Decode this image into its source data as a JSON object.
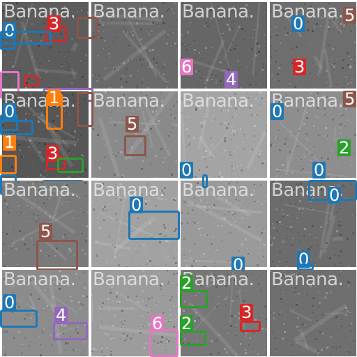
{
  "watermark": "Banana.",
  "class_colors": {
    "0": "#1f77b4",
    "1": "#ff7f0e",
    "2": "#2ca02c",
    "3": "#d62728",
    "4": "#9467bd",
    "5": "#8c564b",
    "6": "#e377c2"
  },
  "tiles": [
    {
      "watermark": "Banana.",
      "tone": "#5c5c5c",
      "labels": [
        "0",
        "3"
      ]
    },
    {
      "watermark": "Banana.",
      "tone": "#6a6a6a",
      "labels": []
    },
    {
      "watermark": "Banana.",
      "tone": "#666666",
      "labels": [
        "6",
        "4"
      ]
    },
    {
      "watermark": "Banana.",
      "tone": "#6e6e6e",
      "labels": [
        "0",
        "5",
        "3"
      ]
    },
    {
      "watermark": "Banana.",
      "tone": "#565656",
      "labels": [
        "0",
        "1",
        "1",
        "3"
      ]
    },
    {
      "watermark": "Banana.",
      "tone": "#8a8a8a",
      "labels": [
        "5"
      ]
    },
    {
      "watermark": "Banana.",
      "tone": "#a4a4a4",
      "labels": [
        "0"
      ]
    },
    {
      "watermark": "Banana.",
      "tone": "#8e8e8e",
      "labels": [
        "0",
        "5",
        "2",
        "0"
      ]
    },
    {
      "watermark": "Banana.",
      "tone": "#7a7a7a",
      "labels": [
        "5"
      ]
    },
    {
      "watermark": "Banana.",
      "tone": "#a2a2a2",
      "labels": [
        "0"
      ]
    },
    {
      "watermark": "Banana.",
      "tone": "#9a9a9a",
      "labels": [
        "0"
      ]
    },
    {
      "watermark": "Banana.",
      "tone": "#6c6c6c",
      "labels": [
        "0",
        "0"
      ]
    },
    {
      "watermark": "Banana.",
      "tone": "#8c8c8c",
      "labels": [
        "0",
        "4"
      ]
    },
    {
      "watermark": "Banana.",
      "tone": "#9c9c9c",
      "labels": [
        "6"
      ]
    },
    {
      "watermark": "Banana.",
      "tone": "#777777",
      "labels": [
        "2",
        "2",
        "3"
      ]
    },
    {
      "watermark": "Banana.",
      "tone": "#6f6f6f",
      "labels": []
    }
  ]
}
